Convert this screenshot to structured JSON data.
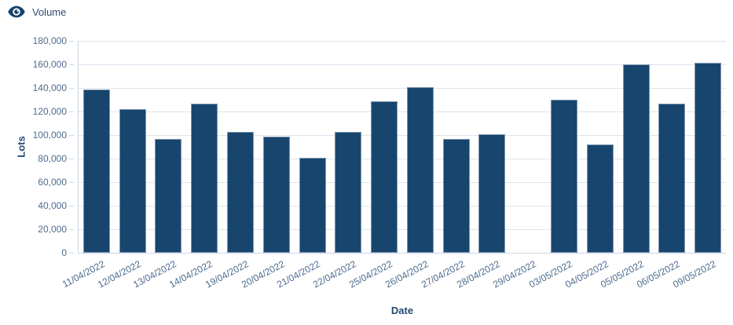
{
  "legend": {
    "label": "Volume"
  },
  "colors": {
    "bar_fill": "#17456e",
    "bar_border": "#7f97b1",
    "gridline": "#dce3ee",
    "axis_line": "#ccd6e3",
    "tick_label": "#4d6c8f",
    "axis_title": "#234a72",
    "background": "#ffffff"
  },
  "chart_data": {
    "type": "bar",
    "title": "",
    "series_name": "Volume",
    "xlabel": "Date",
    "ylabel": "Lots",
    "ylim": [
      0,
      180000
    ],
    "y_tick_step": 20000,
    "grid": true,
    "legend_position": "top-left",
    "categories": [
      "11/04/2022",
      "12/04/2022",
      "13/04/2022",
      "14/04/2022",
      "19/04/2022",
      "20/04/2022",
      "21/04/2022",
      "22/04/2022",
      "25/04/2022",
      "26/04/2022",
      "27/04/2022",
      "28/04/2022",
      "29/04/2022",
      "03/05/2022",
      "04/05/2022",
      "05/05/2022",
      "06/05/2022",
      "09/05/2022"
    ],
    "values": [
      138500,
      122000,
      97000,
      126500,
      103000,
      98500,
      81000,
      103000,
      128500,
      141000,
      96500,
      100500,
      0,
      130000,
      92000,
      160000,
      126500,
      161500
    ]
  }
}
